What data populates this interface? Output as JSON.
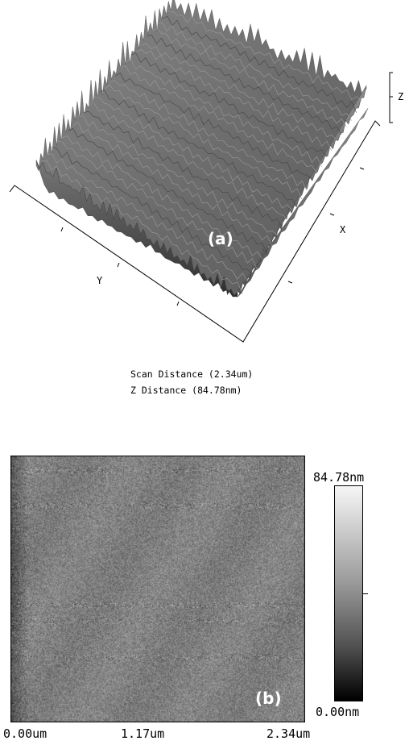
{
  "panel_a": {
    "label": "(a)",
    "axes": {
      "x": "X",
      "y": "Y",
      "z": "Z"
    },
    "caption": {
      "scan_distance": "Scan Distance (2.34um)",
      "z_distance": "Z Distance (84.78nm)"
    }
  },
  "panel_b": {
    "label": "(b)",
    "color_scale": {
      "max": "84.78nm",
      "min": "0.00nm"
    },
    "x_ticks": [
      "0.00um",
      "1.17um",
      "2.34um"
    ]
  }
}
